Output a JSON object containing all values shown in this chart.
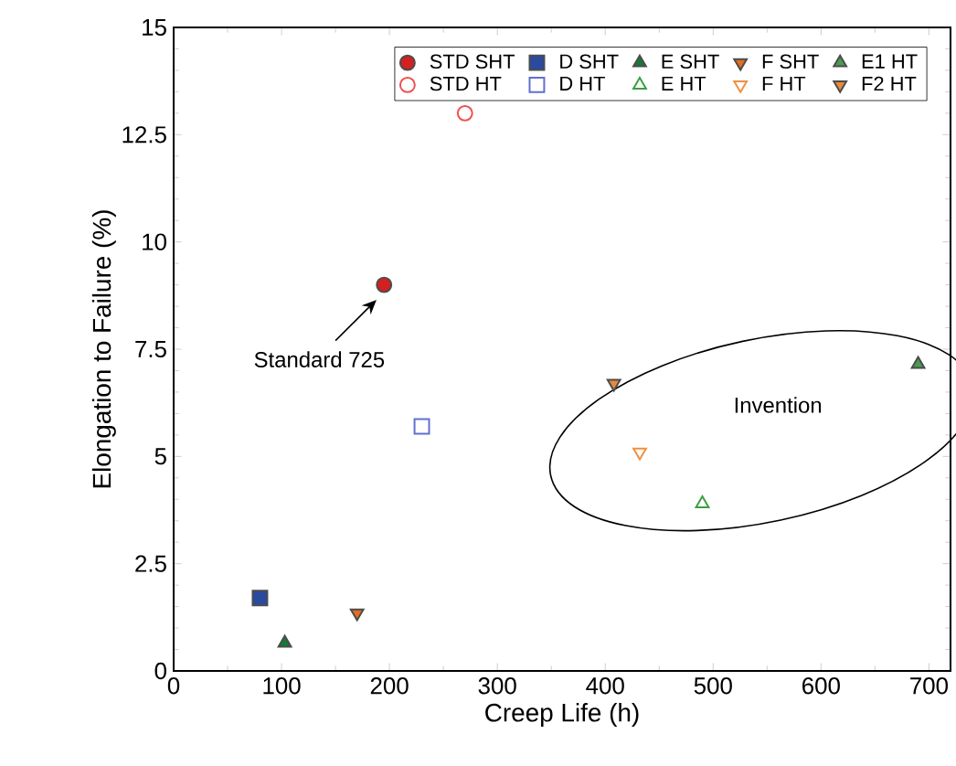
{
  "chart_data": {
    "type": "scatter",
    "xlabel": "Creep Life (h)",
    "ylabel": "Elongation to Failure (%)",
    "xlim": [
      0,
      720
    ],
    "ylim": [
      0,
      15
    ],
    "xticks": [
      0,
      100,
      200,
      300,
      400,
      500,
      600,
      700
    ],
    "yticks": [
      0,
      {
        "value": 2.5,
        "label": "2.5"
      },
      5,
      {
        "value": 7.5,
        "label": "7.5"
      },
      10,
      {
        "value": 12.5,
        "label": "12.5"
      },
      15
    ],
    "legend": "top right",
    "grid": false,
    "annotations": [
      "Standard 725",
      "Invention"
    ],
    "series": [
      {
        "name": "STD SHT",
        "color": "#d42020",
        "marker": "circle",
        "x": [
          195
        ],
        "values": [
          9
        ]
      },
      {
        "name": "STD HT",
        "color": "#f05050",
        "marker": "circle-open",
        "x": [
          270
        ],
        "values": [
          13
        ]
      },
      {
        "name": "D SHT",
        "color": "#2a4aa0",
        "marker": "square",
        "x": [
          80
        ],
        "values": [
          1.7
        ]
      },
      {
        "name": "D HT",
        "color": "#6070d0",
        "marker": "square-open",
        "x": [
          230
        ],
        "values": [
          5.7
        ]
      },
      {
        "name": "E SHT",
        "color": "#157a35",
        "marker": "triangle",
        "x": [
          103
        ],
        "values": [
          0.65
        ]
      },
      {
        "name": "E HT",
        "color": "#3aa040",
        "marker": "triangle-open",
        "x": [
          490
        ],
        "values": [
          3.9
        ]
      },
      {
        "name": "F SHT",
        "color": "#e07020",
        "marker": "triangle-down",
        "x": [
          170
        ],
        "values": [
          1.35
        ]
      },
      {
        "name": "F HT",
        "color": "#f09040",
        "marker": "triangle-down-open",
        "x": [
          432
        ],
        "values": [
          5.1
        ]
      },
      {
        "name": "E1 HT",
        "color": "#4a9a50",
        "marker": "triangle",
        "x": [
          690
        ],
        "values": [
          7.15
        ]
      },
      {
        "name": "F2 HT",
        "color": "#e88a3a",
        "marker": "triangle-down",
        "x": [
          408
        ],
        "values": [
          6.7
        ]
      }
    ]
  }
}
